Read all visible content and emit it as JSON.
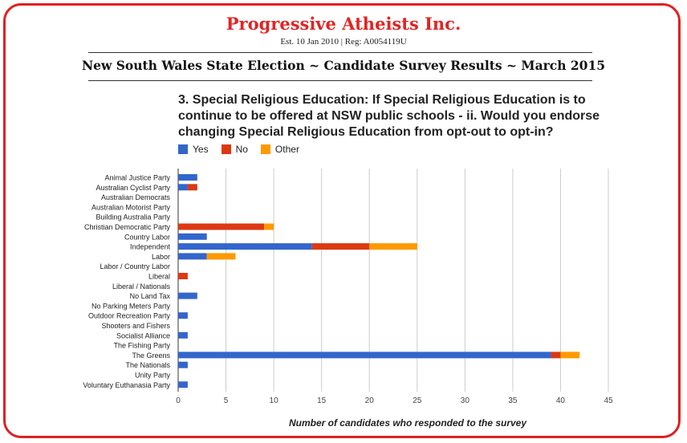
{
  "header": {
    "org_name": "Progressive Atheists Inc.",
    "org_sub": "Est. 10 Jan 2010 | Reg: A0054119U",
    "page_heading": "New South Wales State Election ~ Candidate Survey Results ~ March 2015"
  },
  "colors": {
    "yes": "#3366cc",
    "no": "#dc3912",
    "other": "#ff9900",
    "frame": "#e02020",
    "grid": "#cccccc"
  },
  "chart_data": {
    "type": "bar",
    "orientation": "horizontal",
    "stacked": true,
    "title": "3. Special Religious Education: If Special Religious Education is to continue to be offered at NSW public schools - ii. Would you endorse changing Special Religious Education from opt-out to opt-in?",
    "xlabel": "Number of candidates who responded to the survey",
    "ylabel": "",
    "xlim": [
      0,
      45
    ],
    "xticks": [
      0,
      5,
      10,
      15,
      20,
      25,
      30,
      35,
      40,
      45
    ],
    "grid": true,
    "legend_position": "top-left",
    "categories": [
      "Animal Justice Party",
      "Australian Cyclist Party",
      "Australian Democrats",
      "Australian Motorist Party",
      "Building Australia Party",
      "Christian Democratic Party",
      "Country Labor",
      "Independent",
      "Labor",
      "Labor / Country Labor",
      "Liberal",
      "Liberal / Nationals",
      "No Land Tax",
      "No Parking Meters Party",
      "Outdoor Recreation Party",
      "Shooters and Fishers",
      "Socialist Alliance",
      "The Fishing Party",
      "The Greens",
      "The Nationals",
      "Unity Party",
      "Voluntary Euthanasia Party"
    ],
    "series": [
      {
        "name": "Yes",
        "color": "#3366cc",
        "values": [
          2,
          1,
          0,
          0,
          0,
          0,
          3,
          14,
          3,
          0,
          0,
          0,
          2,
          0,
          1,
          0,
          1,
          0,
          39,
          1,
          0,
          1
        ]
      },
      {
        "name": "No",
        "color": "#dc3912",
        "values": [
          0,
          1,
          0,
          0,
          0,
          9,
          0,
          6,
          0,
          0,
          1,
          0,
          0,
          0,
          0,
          0,
          0,
          0,
          1,
          0,
          0,
          0
        ]
      },
      {
        "name": "Other",
        "color": "#ff9900",
        "values": [
          0,
          0,
          0,
          0,
          0,
          1,
          0,
          5,
          3,
          0,
          0,
          0,
          0,
          0,
          0,
          0,
          0,
          0,
          2,
          0,
          0,
          0
        ]
      }
    ]
  }
}
